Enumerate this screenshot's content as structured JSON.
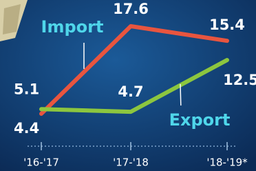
{
  "chart_data": {
    "type": "line",
    "categories": [
      "'16-'17",
      "'17-'18",
      "'18-'19*"
    ],
    "series": [
      {
        "name": "Import",
        "color": "#e8553f",
        "values": [
          4.4,
          17.6,
          15.4
        ]
      },
      {
        "name": "Export",
        "color": "#8cc63f",
        "values": [
          5.1,
          4.7,
          12.5
        ]
      }
    ]
  }
}
